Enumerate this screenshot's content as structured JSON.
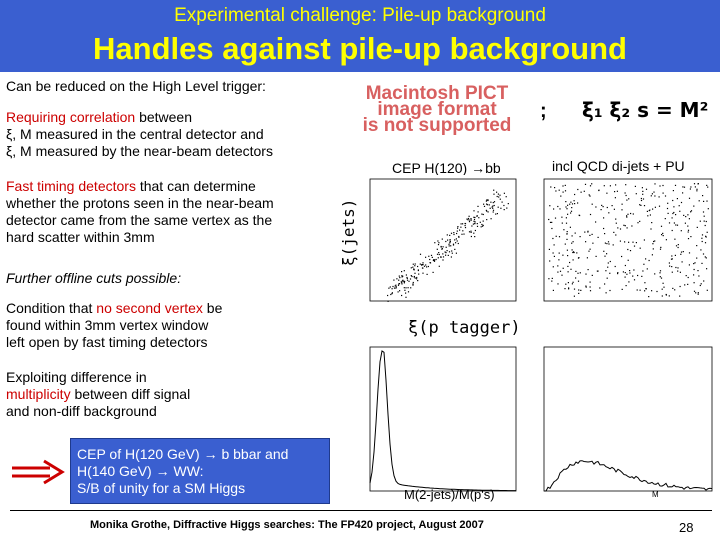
{
  "header": {
    "supertitle": "Experimental challenge: Pile-up background",
    "title": "Handles against pile-up background"
  },
  "left": {
    "hlt_intro": "Can be reduced on the High Level trigger:",
    "corr_red": "Requiring correlation",
    "corr_rest": " between",
    "corr_line2": "ξ, M measured in the central detector and",
    "corr_line3": "ξ, M measured by the near-beam detectors",
    "fast_red": "Fast timing detectors",
    "fast_rest1": " that can determine",
    "fast_line2": "whether the protons seen in the near-beam",
    "fast_line3": "detector came from the same vertex as the",
    "fast_line4": "hard scatter within 3mm",
    "offline": "Further offline cuts possible:",
    "vtx_pre": "Condition that ",
    "vtx_red": "no second vertex",
    "vtx_post": " be",
    "vtx_line2": "found within 3mm vertex window",
    "vtx_line3": "left open by fast timing detectors",
    "mult_line1": "Exploiting difference in",
    "mult_red": "multiplicity",
    "mult_rest": " between diff signal",
    "mult_line3": "and non-diff background",
    "callout_line1": "CEP of H(120 GeV) → b bbar and",
    "callout_line2": "H(140 GeV) → WW:",
    "callout_line3": "S/B of unity for a SM Higgs"
  },
  "figure": {
    "pict_line1": "Macintosh PICT",
    "pict_line2": "image format",
    "pict_line3": "is not supported",
    "semicolon": ";",
    "formula": "ξ₁ ξ₂ s = M²",
    "label_signal": "CEP H(120) →bb",
    "label_bkg": "incl QCD di-jets + PU",
    "ylabel": "ξ(jets)",
    "xlabel": "ξ(p tagger)",
    "xlabel_bottom": "M(2-jets)/M(p's)",
    "corner_tag": "M",
    "colors": {
      "accent_red": "#cc0000",
      "banner": "#3a5fd0",
      "title_yellow": "#ffff00"
    }
  },
  "footer": {
    "text": "Monika Grothe, Diffractive Higgs searches: The FP420 project, August 2007",
    "page": "28"
  }
}
